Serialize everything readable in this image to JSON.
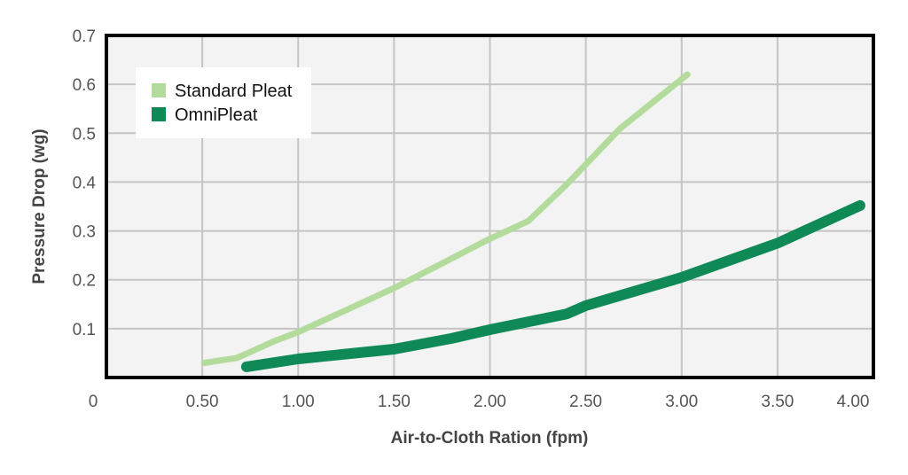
{
  "chart_data": {
    "type": "line",
    "title": "",
    "xlabel": "Air-to-Cloth Ration (fpm)",
    "ylabel": "Pressure Drop (wg)",
    "xlim": [
      0,
      4.0
    ],
    "ylim": [
      0,
      0.7
    ],
    "x_ticks": [
      0,
      0.5,
      1.0,
      1.5,
      2.0,
      2.5,
      3.0,
      3.5,
      4.0
    ],
    "x_tick_labels": [
      "0",
      "0.50",
      "1.00",
      "1.50",
      "2.00",
      "2.50",
      "3.00",
      "3.50",
      "4.00"
    ],
    "y_ticks": [
      0.1,
      0.2,
      0.3,
      0.4,
      0.5,
      0.6,
      0.7
    ],
    "y_tick_labels": [
      "0.1",
      "0.2",
      "0.3",
      "0.4",
      "0.5",
      "0.6",
      "0.7"
    ],
    "grid": true,
    "legend_position": "top-left",
    "series": [
      {
        "name": "Standard Pleat",
        "color": "#b3dc9c",
        "x": [
          0.51,
          0.68,
          0.88,
          1.0,
          1.5,
          2.0,
          2.2,
          2.4,
          2.68,
          3.03
        ],
        "y": [
          0.03,
          0.04,
          0.075,
          0.093,
          0.183,
          0.284,
          0.32,
          0.395,
          0.51,
          0.62
        ]
      },
      {
        "name": "OmniPleat",
        "color": "#0f8a57",
        "x": [
          0.73,
          1.0,
          1.5,
          1.8,
          2.0,
          2.4,
          2.5,
          3.0,
          3.25,
          3.5,
          3.64,
          3.93
        ],
        "y": [
          0.022,
          0.038,
          0.058,
          0.08,
          0.098,
          0.13,
          0.147,
          0.205,
          0.24,
          0.275,
          0.3,
          0.352
        ]
      }
    ]
  }
}
